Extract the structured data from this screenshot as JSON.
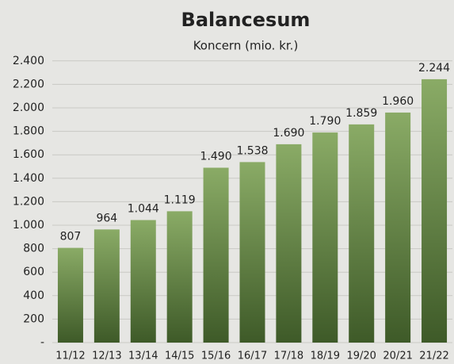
{
  "chart_data": {
    "type": "bar",
    "title": "Balancesum",
    "subtitle": "Koncern (mio. kr.)",
    "categories": [
      "11/12",
      "12/13",
      "13/14",
      "14/15",
      "15/16",
      "16/17",
      "17/18",
      "18/19",
      "19/20",
      "20/21",
      "21/22"
    ],
    "values": [
      807,
      964,
      1044,
      1119,
      1490,
      1538,
      1690,
      1790,
      1859,
      1960,
      2244
    ],
    "value_labels": [
      "807",
      "964",
      "1.044",
      "1.119",
      "1.490",
      "1.538",
      "1.690",
      "1.790",
      "1.859",
      "1.960",
      "2.244"
    ],
    "color": "#8aab66",
    "ylim": [
      0,
      2500
    ],
    "yticks": [
      {
        "value": 0,
        "label": "-"
      },
      200,
      400,
      600,
      800,
      {
        "value": 1000,
        "label": "1.000"
      },
      {
        "value": 1200,
        "label": "1.200"
      },
      {
        "value": 1400,
        "label": "1.400"
      },
      {
        "value": 1600,
        "label": "1.600"
      },
      {
        "value": 1800,
        "label": "1.800"
      },
      {
        "value": 2000,
        "label": "2.000"
      },
      {
        "value": 2200,
        "label": "2.200"
      },
      {
        "value": 2400,
        "label": "2.400"
      }
    ],
    "grid": true
  }
}
